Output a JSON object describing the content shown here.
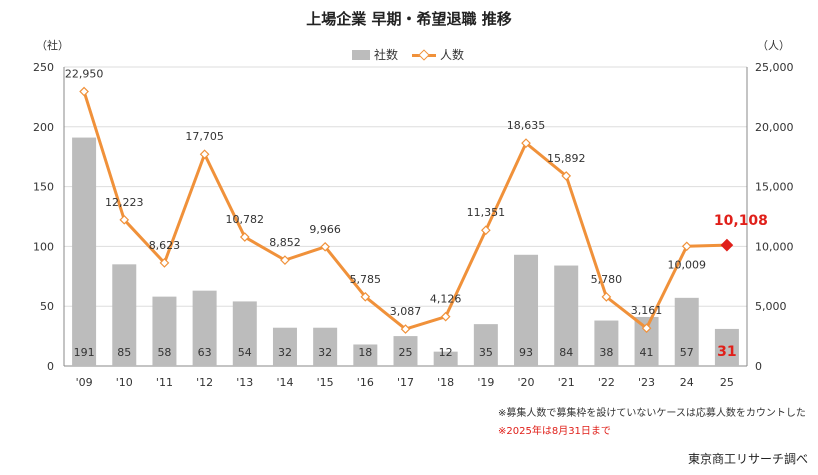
{
  "title": "上場企業 早期・希望退職 推移",
  "left_unit": "（社）",
  "right_unit": "（人）",
  "legend": {
    "bar": "社数",
    "line": "人数"
  },
  "notes": [
    "※募集人数で募集枠を設けていないケースは応募人数をカウントした",
    "※2025年は8月31日まで"
  ],
  "source": "東京商工リサーチ調べ",
  "colors": {
    "bar": "#bcbcbc",
    "line": "#f0913a",
    "highlight": "#e0201a",
    "axis": "#888888",
    "grid": "#dddddd"
  },
  "chart_data": {
    "type": "bar+line",
    "categories": [
      "'09",
      "'10",
      "'11",
      "'12",
      "'13",
      "'14",
      "'15",
      "'16",
      "'17",
      "'18",
      "'19",
      "'20",
      "'21",
      "'22",
      "'23",
      "24",
      "25"
    ],
    "series": [
      {
        "name": "社数",
        "type": "bar",
        "axis": "left",
        "values": [
          191,
          85,
          58,
          63,
          54,
          32,
          32,
          18,
          25,
          12,
          35,
          93,
          84,
          38,
          41,
          57,
          31
        ],
        "labels": [
          "191",
          "85",
          "58",
          "63",
          "54",
          "32",
          "32",
          "18",
          "25",
          "12",
          "35",
          "93",
          "84",
          "38",
          "41",
          "57",
          "31"
        ]
      },
      {
        "name": "人数",
        "type": "line",
        "axis": "right",
        "values": [
          22950,
          12223,
          8623,
          17705,
          10782,
          8852,
          9966,
          5785,
          3087,
          4126,
          11351,
          18635,
          15892,
          5780,
          3161,
          10009,
          10108
        ],
        "labels": [
          "22,950",
          "12,223",
          "8,623",
          "17,705",
          "10,782",
          "8,852",
          "9,966",
          "5,785",
          "3,087",
          "4,126",
          "11,351",
          "18,635",
          "15,892",
          "5,780",
          "3,161",
          "10,009",
          "10,108"
        ]
      }
    ],
    "left_axis": {
      "min": 0,
      "max": 250,
      "ticks": [
        "0",
        "50",
        "100",
        "150",
        "200",
        "250"
      ]
    },
    "right_axis": {
      "min": 0,
      "max": 25000,
      "ticks": [
        "0",
        "5,000",
        "10,000",
        "15,000",
        "20,000",
        "25,000"
      ]
    },
    "highlight_last": true
  }
}
